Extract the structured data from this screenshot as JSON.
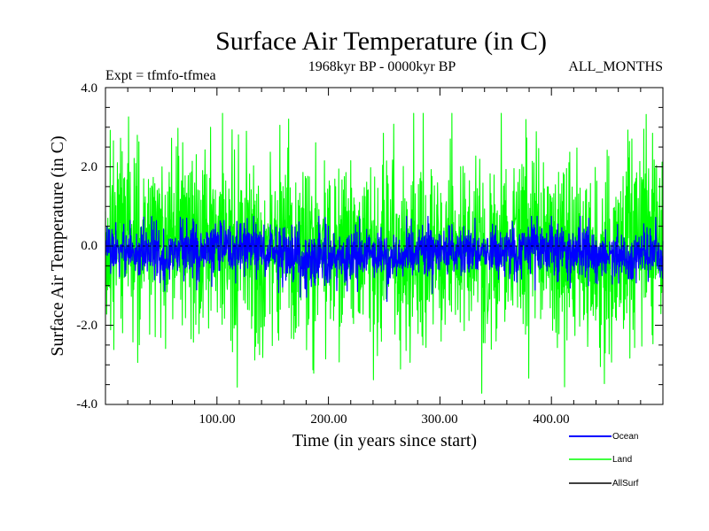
{
  "chart_data": {
    "type": "line",
    "title": "Surface Air Temperature (in C)",
    "subtitle_left": "Expt = tfmfo-tfmea",
    "subtitle_center": "1968kyr BP - 0000kyr BP",
    "subtitle_right": "ALL_MONTHS",
    "xlabel": "Time (in years since start)",
    "ylabel": "Surface Air Temperature (in C)",
    "xlim": [
      0,
      500
    ],
    "ylim": [
      -4.0,
      4.0
    ],
    "x_ticks": [
      100,
      200,
      300,
      400
    ],
    "x_tick_labels": [
      "100.00",
      "200.00",
      "300.00",
      "400.00"
    ],
    "y_ticks": [
      4.0,
      2.0,
      0.0,
      -2.0,
      -4.0
    ],
    "y_tick_labels": [
      "4.0",
      "2.0",
      "0.0",
      "-2.0",
      "-4.0"
    ],
    "zero_line": 0.0,
    "legend_position": "bottom-right",
    "series": [
      {
        "name": "Land",
        "color": "#00ff00",
        "summary": {
          "mean": 0.0,
          "typical_range": [
            -3.0,
            2.8
          ],
          "max": 3.35,
          "min": -3.9
        }
      },
      {
        "name": "Ocean",
        "color": "#0000ff",
        "summary": {
          "mean": -0.1,
          "typical_range": [
            -1.0,
            0.6
          ],
          "max": 0.75,
          "min": -1.5
        }
      },
      {
        "name": "AllSurf",
        "color": "#000000",
        "summary": {
          "mean": 0.0
        }
      }
    ],
    "legend": [
      {
        "label": "Ocean",
        "color": "#0000ff"
      },
      {
        "label": "Land",
        "color": "#00ff00"
      },
      {
        "label": "AllSurf",
        "color": "#000000"
      }
    ]
  }
}
